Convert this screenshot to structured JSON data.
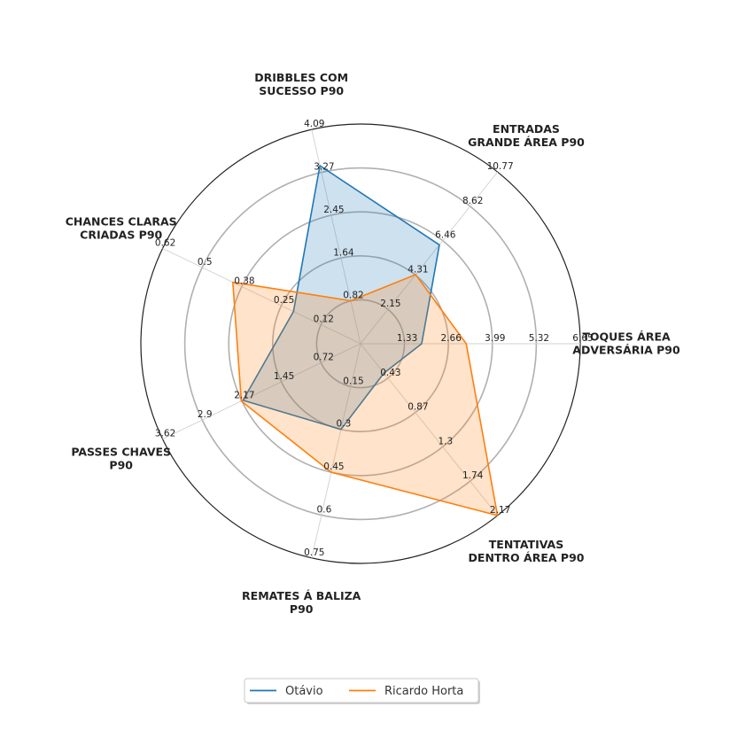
{
  "chart_data": {
    "type": "radar",
    "axes": [
      {
        "label": [
          "TOQUES ÁREA",
          "ADVERSÁRIA P90"
        ],
        "ticks": [
          "1.33",
          "2.66",
          "3.99",
          "5.32",
          "6.65"
        ],
        "max": 6.65
      },
      {
        "label": [
          "ENTRADAS",
          "GRANDE ÁREA P90"
        ],
        "ticks": [
          "2.15",
          "4.31",
          "6.46",
          "8.62",
          "10.77"
        ],
        "max": 10.77
      },
      {
        "label": [
          "DRIBBLES COM",
          "SUCESSO P90"
        ],
        "ticks": [
          "0.82",
          "1.64",
          "2.45",
          "3.27",
          "4.09"
        ],
        "max": 4.09
      },
      {
        "label": [
          "CHANCES CLARAS",
          "CRIADAS P90"
        ],
        "ticks": [
          "0.12",
          "0.25",
          "0.38",
          "0.5",
          "0.62"
        ],
        "max": 0.62
      },
      {
        "label": [
          "PASSES CHAVES",
          "P90"
        ],
        "ticks": [
          "0.72",
          "1.45",
          "2.17",
          "2.9",
          "3.62"
        ],
        "max": 3.62
      },
      {
        "label": [
          "REMATES Á BALIZA",
          "P90"
        ],
        "ticks": [
          "0.15",
          "0.3",
          "0.45",
          "0.6",
          "0.75"
        ],
        "max": 0.75
      },
      {
        "label": [
          "TENTATIVAS",
          "DENTRO ÁREA P90"
        ],
        "ticks": [
          "0.43",
          "0.87",
          "1.3",
          "1.74",
          "2.17"
        ],
        "max": 2.17
      }
    ],
    "series": [
      {
        "name": "Otávio",
        "color": "#1f77b4",
        "values": [
          1.85,
          6.2,
          3.4,
          0.21,
          2.15,
          0.3,
          0.37
        ]
      },
      {
        "name": "Ricardo Horta",
        "color": "#ff7f0e",
        "values": [
          3.2,
          4.33,
          0.82,
          0.4,
          2.18,
          0.45,
          2.17
        ]
      }
    ],
    "legend": "bottom-center",
    "grid": true
  }
}
